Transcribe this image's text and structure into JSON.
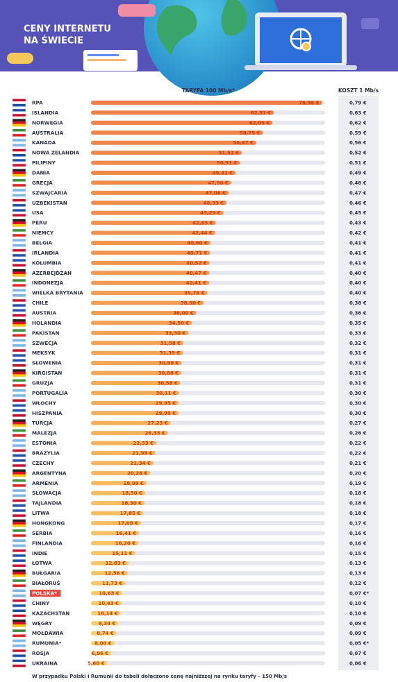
{
  "chart_data": {
    "type": "bar",
    "title_line1": "CENY INTERNETU",
    "title_line2": "NA ŚWIECIE",
    "categories": [
      "RPA",
      "ISLANDIA",
      "NORWEGIA",
      "AUSTRALIA",
      "KANADA",
      "NOWA ZELANDIA",
      "FILIPINY",
      "DANIA",
      "GRECJA",
      "SZWAJCARIA",
      "UZBEKISTAN",
      "USA",
      "PERU",
      "NIEMCY",
      "BELGIA",
      "IRLANDIA",
      "KOLUMBIA",
      "AZERBEJDŻAN",
      "INDONEZJA",
      "WIELKA BRYTANIA",
      "CHILE",
      "AUSTRIA",
      "HOLANDIA",
      "PAKISTAN",
      "SZWECJA",
      "MEKSYK",
      "SŁOWENIA",
      "KIRGISTAN",
      "GRUZJA",
      "PORTUGALIA",
      "WŁOCHY",
      "HISZPANIA",
      "TURCJA",
      "MALEZJA",
      "ESTONIA",
      "BRAZYLIA",
      "CZECHY",
      "ARGENTYNA",
      "ARMENIA",
      "SŁOWACJA",
      "TAJLANDIA",
      "LITWA",
      "HONGKONG",
      "SERBIA",
      "FINLANDIA",
      "INDIE",
      "ŁOTWA",
      "BUŁGARIA",
      "BIAŁORUŚ",
      "POLSKA*",
      "CHINY",
      "KAZACHSTAN",
      "WĘGRY",
      "MOŁDAWIA",
      "RUMUNIA*",
      "ROSJA",
      "UKRAINA"
    ],
    "series": [
      {
        "name": "TARYFA 100 Mb/s*",
        "color": "#ef7f45",
        "color_end": "#f9d46a",
        "values": [
          78.96,
          62.51,
          62.05,
          58.75,
          56.47,
          51.52,
          50.91,
          49.41,
          47.9,
          47.06,
          46.33,
          45.23,
          42.65,
          42.44,
          40.8,
          40.71,
          40.52,
          40.47,
          40.41,
          39.78,
          38.5,
          36.0,
          34.5,
          33.3,
          31.58,
          31.39,
          30.99,
          30.88,
          30.58,
          30.11,
          29.95,
          29.95,
          27.23,
          26.33,
          22.33,
          21.99,
          21.34,
          20.28,
          18.99,
          18.5,
          18.3,
          17.85,
          17.09,
          16.41,
          16.2,
          15.11,
          12.83,
          12.56,
          11.73,
          10.63,
          10.43,
          10.14,
          9.34,
          8.74,
          8.0,
          6.96,
          5.6
        ],
        "value_labels": [
          "78,96 €",
          "62,51 €",
          "62,05 €",
          "58,75 €",
          "56,47 €",
          "51,52 €",
          "50,91 €",
          "49,41 €",
          "47,90 €",
          "47,06 €",
          "46,33 €",
          "45,23 €",
          "42,65 €",
          "42,44 €",
          "40,80 €",
          "40,71 €",
          "40,52 €",
          "40,47 €",
          "40,41 €",
          "39,78 €",
          "38,50 €",
          "36,00 €",
          "34,50 €",
          "33,30 €",
          "31,58 €",
          "31,39 €",
          "30,99 €",
          "30,88 €",
          "30,58 €",
          "30,11 €",
          "29,95 €",
          "29,95 €",
          "27,23 €",
          "26,33 €",
          "22,33 €",
          "21,99 €",
          "21,34 €",
          "20,28 €",
          "18,99 €",
          "18,50 €",
          "18,30 €",
          "17,85 €",
          "17,09 €",
          "16,41 €",
          "16,20 €",
          "15,11 €",
          "12,83 €",
          "12,56 €",
          "11,73 €",
          "10,63 €",
          "10,43 €",
          "10,14 €",
          "9,34 €",
          "8,74 €",
          "8,00 €",
          "6,96 €",
          "5,60 €"
        ]
      },
      {
        "name": "KOSZT 1 Mb/s",
        "values": [
          0.79,
          0.63,
          0.62,
          0.59,
          0.56,
          0.52,
          0.51,
          0.49,
          0.48,
          0.47,
          0.46,
          0.45,
          0.43,
          0.42,
          0.41,
          0.41,
          0.41,
          0.4,
          0.4,
          0.4,
          0.38,
          0.36,
          0.35,
          0.33,
          0.32,
          0.31,
          0.31,
          0.31,
          0.31,
          0.3,
          0.3,
          0.3,
          0.27,
          0.26,
          0.22,
          0.22,
          0.21,
          0.2,
          0.19,
          0.18,
          0.18,
          0.18,
          0.17,
          0.16,
          0.16,
          0.15,
          0.13,
          0.13,
          0.12,
          0.07,
          0.1,
          0.1,
          0.09,
          0.09,
          0.05,
          0.07,
          0.06
        ],
        "value_labels": [
          "0,79 €",
          "0,63 €",
          "0,62 €",
          "0,59 €",
          "0,56 €",
          "0,52 €",
          "0,51 €",
          "0,49 €",
          "0,48 €",
          "0,47 €",
          "0,46 €",
          "0,45 €",
          "0,43 €",
          "0,42 €",
          "0,41 €",
          "0,41 €",
          "0,41 €",
          "0,40 €",
          "0,40 €",
          "0,40 €",
          "0,38 €",
          "0,36 €",
          "0,35 €",
          "0,33 €",
          "0,32 €",
          "0,31 €",
          "0,31 €",
          "0,31 €",
          "0,31 €",
          "0,30 €",
          "0,30 €",
          "0,30 €",
          "0,27 €",
          "0,26 €",
          "0,22 €",
          "0,22 €",
          "0,21 €",
          "0,20 €",
          "0,19 €",
          "0,18 €",
          "0,18 €",
          "0,18 €",
          "0,17 €",
          "0,16 €",
          "0,16 €",
          "0,15 €",
          "0,13 €",
          "0,13 €",
          "0,12 €",
          "0,07 €*",
          "0,10 €",
          "0,10 €",
          "0,09 €",
          "0,09 €",
          "0,05 €*",
          "0,07 €",
          "0,06 €"
        ]
      }
    ],
    "xlim": [
      0,
      80
    ],
    "highlight": "POLSKA*",
    "highlight_color": "#e8453c",
    "footnote": "W przypadku Polski i Rumunii do tabeli dołączono cenę najniższej na rynku taryfy – 150 Mb/s"
  }
}
